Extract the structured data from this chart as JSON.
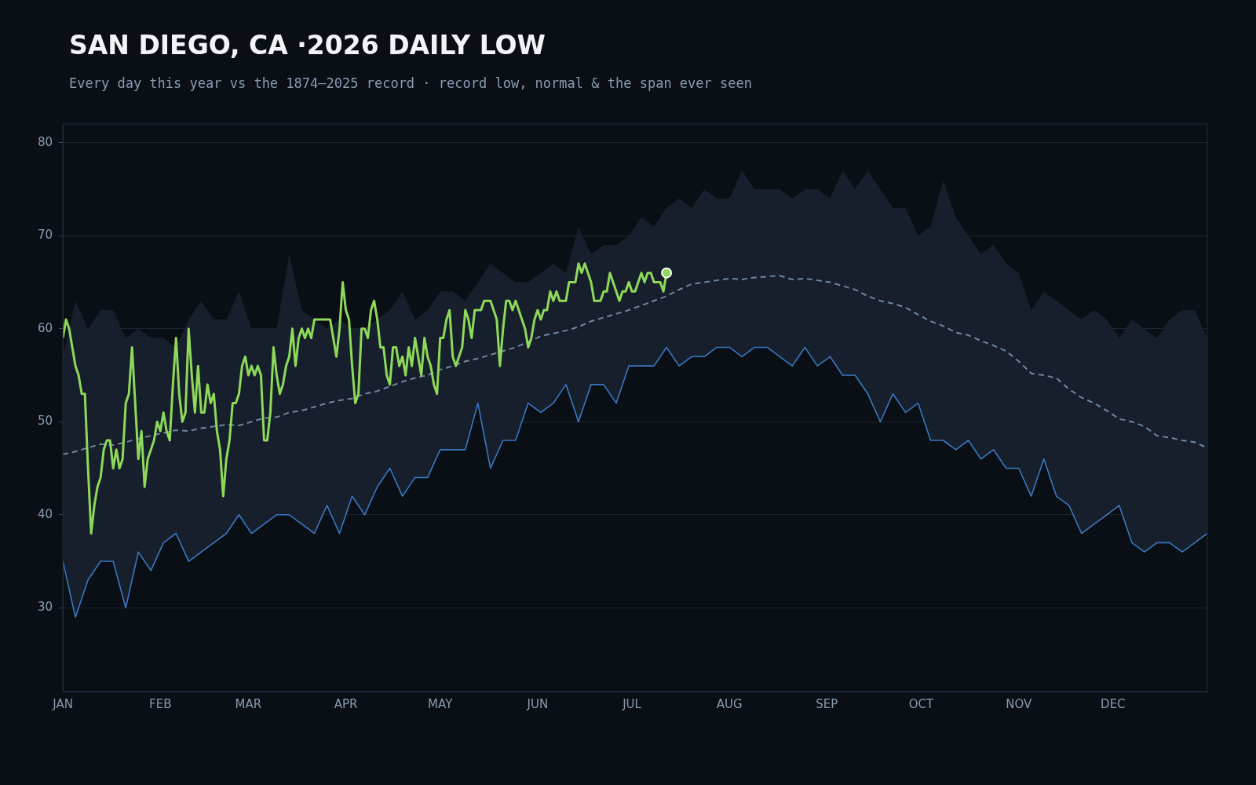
{
  "chart_data": {
    "type": "line",
    "title": "SAN DIEGO, CA ·2026 DAILY LOW",
    "subtitle": "Every day this year vs the 1874–2025 record · record low, normal & the span ever seen",
    "xlim": [
      "2026-01-01",
      "2026-12-31"
    ],
    "xticks": [
      {
        "value": "2026-01-01",
        "label": "JAN"
      },
      {
        "value": "2026-02-01",
        "label": "FEB"
      },
      {
        "value": "2026-03-01",
        "label": "MAR"
      },
      {
        "value": "2026-04-01",
        "label": "APR"
      },
      {
        "value": "2026-05-01",
        "label": "MAY"
      },
      {
        "value": "2026-06-01",
        "label": "JUN"
      },
      {
        "value": "2026-07-01",
        "label": "JUL"
      },
      {
        "value": "2026-08-01",
        "label": "AUG"
      },
      {
        "value": "2026-09-01",
        "label": "SEP"
      },
      {
        "value": "2026-10-01",
        "label": "OCT"
      },
      {
        "value": "2026-11-01",
        "label": "NOV"
      },
      {
        "value": "2026-12-01",
        "label": "DEC"
      }
    ],
    "ylim": [
      21,
      82
    ],
    "yticks": [
      30,
      40,
      50,
      60,
      70,
      80
    ],
    "grid": "y",
    "legend": false,
    "x": [
      "2026-01-01",
      "2026-01-02",
      "2026-01-03",
      "2026-01-04",
      "2026-01-05",
      "2026-01-06",
      "2026-01-07",
      "2026-01-08",
      "2026-01-09",
      "2026-01-10",
      "2026-01-11",
      "2026-01-12",
      "2026-01-13",
      "2026-01-14",
      "2026-01-15",
      "2026-01-16",
      "2026-01-17",
      "2026-01-18",
      "2026-01-19",
      "2026-01-20",
      "2026-01-21",
      "2026-01-22",
      "2026-01-23",
      "2026-01-24",
      "2026-01-25",
      "2026-01-26",
      "2026-01-27",
      "2026-01-28",
      "2026-01-29",
      "2026-01-30",
      "2026-01-31",
      "2026-02-01",
      "2026-02-02",
      "2026-02-03",
      "2026-02-04",
      "2026-02-05",
      "2026-02-06",
      "2026-02-07",
      "2026-02-08",
      "2026-02-09",
      "2026-02-10",
      "2026-02-11",
      "2026-02-12",
      "2026-02-13",
      "2026-02-14",
      "2026-02-15",
      "2026-02-16",
      "2026-02-17",
      "2026-02-18",
      "2026-02-19",
      "2026-02-20",
      "2026-02-21",
      "2026-02-22",
      "2026-02-23",
      "2026-02-24",
      "2026-02-25",
      "2026-02-26",
      "2026-02-27",
      "2026-02-28",
      "2026-03-01",
      "2026-03-02",
      "2026-03-03",
      "2026-03-04",
      "2026-03-05",
      "2026-03-06",
      "2026-03-07",
      "2026-03-08",
      "2026-03-09",
      "2026-03-10",
      "2026-03-11",
      "2026-03-12",
      "2026-03-13",
      "2026-03-14",
      "2026-03-15",
      "2026-03-16",
      "2026-03-17",
      "2026-03-18",
      "2026-03-19",
      "2026-03-20",
      "2026-03-21",
      "2026-03-22",
      "2026-03-23",
      "2026-03-24",
      "2026-03-25",
      "2026-03-26",
      "2026-03-27",
      "2026-03-28",
      "2026-03-29",
      "2026-03-30",
      "2026-03-31",
      "2026-04-01",
      "2026-04-02",
      "2026-04-03",
      "2026-04-04",
      "2026-04-05",
      "2026-04-06",
      "2026-04-07",
      "2026-04-08",
      "2026-04-09",
      "2026-04-10",
      "2026-04-11",
      "2026-04-12",
      "2026-04-13",
      "2026-04-14",
      "2026-04-15",
      "2026-04-16",
      "2026-04-17",
      "2026-04-18",
      "2026-04-19",
      "2026-04-20",
      "2026-04-21",
      "2026-04-22",
      "2026-04-23",
      "2026-04-24",
      "2026-04-25",
      "2026-04-26",
      "2026-04-27",
      "2026-04-28",
      "2026-04-29",
      "2026-04-30",
      "2026-05-01",
      "2026-05-02",
      "2026-05-03",
      "2026-05-04",
      "2026-05-05",
      "2026-05-06",
      "2026-05-07",
      "2026-05-08",
      "2026-05-09",
      "2026-05-10",
      "2026-05-11",
      "2026-05-12",
      "2026-05-13",
      "2026-05-14",
      "2026-05-15",
      "2026-05-16",
      "2026-05-17",
      "2026-05-18",
      "2026-05-19",
      "2026-05-20",
      "2026-05-21",
      "2026-05-22",
      "2026-05-23",
      "2026-05-24",
      "2026-05-25",
      "2026-05-26",
      "2026-05-27",
      "2026-05-28",
      "2026-05-29",
      "2026-05-30",
      "2026-05-31",
      "2026-06-01",
      "2026-06-02",
      "2026-06-03",
      "2026-06-04",
      "2026-06-05",
      "2026-06-06",
      "2026-06-07",
      "2026-06-08",
      "2026-06-09",
      "2026-06-10",
      "2026-06-11",
      "2026-06-12",
      "2026-06-13",
      "2026-06-14",
      "2026-06-15",
      "2026-06-16",
      "2026-06-17",
      "2026-06-18",
      "2026-06-19",
      "2026-06-20",
      "2026-06-21",
      "2026-06-22",
      "2026-06-23",
      "2026-06-24",
      "2026-06-25",
      "2026-06-26",
      "2026-06-27",
      "2026-06-28",
      "2026-06-29",
      "2026-06-30",
      "2026-07-01",
      "2026-07-02",
      "2026-07-03",
      "2026-07-04",
      "2026-07-05",
      "2026-07-06",
      "2026-07-07",
      "2026-07-08",
      "2026-07-09",
      "2026-07-10",
      "2026-07-11",
      "2026-07-12"
    ],
    "series": [
      {
        "type": "line",
        "color": "#6f86a3",
        "line_style": "dashed",
        "x": [
          "2026-01-01",
          "2026-01-05",
          "2026-01-09",
          "2026-01-13",
          "2026-01-17",
          "2026-01-21",
          "2026-01-25",
          "2026-01-29",
          "2026-02-02",
          "2026-02-06",
          "2026-02-10",
          "2026-02-14",
          "2026-02-18",
          "2026-02-22",
          "2026-02-26",
          "2026-03-02",
          "2026-03-06",
          "2026-03-10",
          "2026-03-14",
          "2026-03-18",
          "2026-03-22",
          "2026-03-26",
          "2026-03-30",
          "2026-04-03",
          "2026-04-07",
          "2026-04-11",
          "2026-04-15",
          "2026-04-19",
          "2026-04-23",
          "2026-04-27",
          "2026-05-01",
          "2026-05-05",
          "2026-05-09",
          "2026-05-13",
          "2026-05-17",
          "2026-05-21",
          "2026-05-25",
          "2026-05-29",
          "2026-06-02",
          "2026-06-06",
          "2026-06-10",
          "2026-06-14",
          "2026-06-18",
          "2026-06-22",
          "2026-06-26",
          "2026-06-30",
          "2026-07-04",
          "2026-07-08",
          "2026-07-12",
          "2026-07-16",
          "2026-07-20",
          "2026-07-24",
          "2026-07-28",
          "2026-08-01",
          "2026-08-05",
          "2026-08-09",
          "2026-08-13",
          "2026-08-17",
          "2026-08-21",
          "2026-08-25",
          "2026-08-29",
          "2026-09-02",
          "2026-09-06",
          "2026-09-10",
          "2026-09-14",
          "2026-09-18",
          "2026-09-22",
          "2026-09-26",
          "2026-09-30",
          "2026-10-04",
          "2026-10-08",
          "2026-10-12",
          "2026-10-16",
          "2026-10-20",
          "2026-10-24",
          "2026-10-28",
          "2026-11-01",
          "2026-11-05",
          "2026-11-09",
          "2026-11-13",
          "2026-11-17",
          "2026-11-21",
          "2026-11-25",
          "2026-11-29",
          "2026-12-03",
          "2026-12-07",
          "2026-12-11",
          "2026-12-15",
          "2026-12-19",
          "2026-12-23",
          "2026-12-27",
          "2026-12-31"
        ],
        "values": [
          46.5,
          46.8,
          47.2,
          47.6,
          47.5,
          47.8,
          48.2,
          48.5,
          48.8,
          49.1,
          49.0,
          49.3,
          49.5,
          49.7,
          49.6,
          50.0,
          50.4,
          50.5,
          51.0,
          51.2,
          51.6,
          52.0,
          52.3,
          52.5,
          53.0,
          53.3,
          53.8,
          54.3,
          54.7,
          55.0,
          55.6,
          56.0,
          56.5,
          56.8,
          57.2,
          57.6,
          58.0,
          58.6,
          59.2,
          59.5,
          59.8,
          60.2,
          60.8,
          61.2,
          61.6,
          62.0,
          62.5,
          63.0,
          63.5,
          64.2,
          64.8,
          65.0,
          65.2,
          65.4,
          65.3,
          65.5,
          65.6,
          65.7,
          65.3,
          65.4,
          65.2,
          65.0,
          64.6,
          64.2,
          63.5,
          63.0,
          62.7,
          62.3,
          61.5,
          60.8,
          60.3,
          59.6,
          59.3,
          58.7,
          58.2,
          57.6,
          56.5,
          55.2,
          55.0,
          54.7,
          53.5,
          52.6,
          52.0,
          51.2,
          50.3,
          50.0,
          49.5,
          48.5,
          48.3,
          48.0,
          47.8,
          47.2
        ],
        "lower": [
          35,
          29,
          33,
          35,
          35,
          30,
          36,
          34,
          37,
          38,
          35,
          36,
          37,
          38,
          40,
          38,
          39,
          40,
          40,
          39,
          38,
          41,
          38,
          42,
          40,
          43,
          45,
          42,
          44,
          44,
          47,
          47,
          47,
          52,
          45,
          48,
          48,
          52,
          51,
          52,
          54,
          50,
          54,
          54,
          52,
          56,
          56,
          56,
          58,
          56,
          57,
          57,
          58,
          58,
          57,
          58,
          58,
          57,
          56,
          58,
          56,
          57,
          55,
          55,
          53,
          50,
          53,
          51,
          52,
          48,
          48,
          47,
          48,
          46,
          47,
          45,
          45,
          42,
          46,
          42,
          41,
          38,
          39,
          40,
          41,
          37,
          36,
          37,
          37,
          36,
          37,
          38
        ],
        "upper": [
          57,
          63,
          60,
          62,
          62,
          59,
          60,
          59,
          59,
          58,
          61,
          63,
          61,
          61,
          64,
          60,
          60,
          60,
          68,
          62,
          61,
          60,
          61,
          60,
          60,
          61,
          62,
          64,
          61,
          62,
          64,
          64,
          63,
          65,
          67,
          66,
          65,
          65,
          66,
          67,
          66,
          71,
          68,
          69,
          69,
          70,
          72,
          71,
          73,
          74,
          73,
          75,
          74,
          74,
          77,
          75,
          75,
          75,
          74,
          75,
          75,
          74,
          77,
          75,
          77,
          75,
          73,
          73,
          70,
          71,
          76,
          72,
          70,
          68,
          69,
          67,
          66,
          62,
          64,
          63,
          62,
          61,
          62,
          61,
          59,
          61,
          60,
          59,
          61,
          62,
          62,
          59
        ]
      },
      {
        "type": "line",
        "color": "#3a78c0",
        "x": [
          "2026-01-01",
          "2026-01-05",
          "2026-01-09",
          "2026-01-13",
          "2026-01-17",
          "2026-01-21",
          "2026-01-25",
          "2026-01-29",
          "2026-02-02",
          "2026-02-06",
          "2026-02-10",
          "2026-02-14",
          "2026-02-18",
          "2026-02-22",
          "2026-02-26",
          "2026-03-02",
          "2026-03-06",
          "2026-03-10",
          "2026-03-14",
          "2026-03-18",
          "2026-03-22",
          "2026-03-26",
          "2026-03-30",
          "2026-04-03",
          "2026-04-07",
          "2026-04-11",
          "2026-04-15",
          "2026-04-19",
          "2026-04-23",
          "2026-04-27",
          "2026-05-01",
          "2026-05-05",
          "2026-05-09",
          "2026-05-13",
          "2026-05-17",
          "2026-05-21",
          "2026-05-25",
          "2026-05-29",
          "2026-06-02",
          "2026-06-06",
          "2026-06-10",
          "2026-06-14",
          "2026-06-18",
          "2026-06-22",
          "2026-06-26",
          "2026-06-30",
          "2026-07-04",
          "2026-07-08",
          "2026-07-12",
          "2026-07-16",
          "2026-07-20",
          "2026-07-24",
          "2026-07-28",
          "2026-08-01",
          "2026-08-05",
          "2026-08-09",
          "2026-08-13",
          "2026-08-17",
          "2026-08-21",
          "2026-08-25",
          "2026-08-29",
          "2026-09-02",
          "2026-09-06",
          "2026-09-10",
          "2026-09-14",
          "2026-09-18",
          "2026-09-22",
          "2026-09-26",
          "2026-09-30",
          "2026-10-04",
          "2026-10-08",
          "2026-10-12",
          "2026-10-16",
          "2026-10-20",
          "2026-10-24",
          "2026-10-28",
          "2026-11-01",
          "2026-11-05",
          "2026-11-09",
          "2026-11-13",
          "2026-11-17",
          "2026-11-21",
          "2026-11-25",
          "2026-11-29",
          "2026-12-03",
          "2026-12-07",
          "2026-12-11",
          "2026-12-15",
          "2026-12-19",
          "2026-12-23",
          "2026-12-27",
          "2026-12-31"
        ],
        "values": [
          35,
          29,
          33,
          35,
          35,
          30,
          36,
          34,
          37,
          38,
          35,
          36,
          37,
          38,
          40,
          38,
          39,
          40,
          40,
          39,
          38,
          41,
          38,
          42,
          40,
          43,
          45,
          42,
          44,
          44,
          47,
          47,
          47,
          52,
          45,
          48,
          48,
          52,
          51,
          52,
          54,
          50,
          54,
          54,
          52,
          56,
          56,
          56,
          58,
          56,
          57,
          57,
          58,
          58,
          57,
          58,
          58,
          57,
          56,
          58,
          56,
          57,
          55,
          55,
          53,
          50,
          53,
          51,
          52,
          48,
          48,
          47,
          48,
          46,
          47,
          45,
          45,
          42,
          46,
          42,
          41,
          38,
          39,
          40,
          41,
          37,
          36,
          37,
          37,
          36,
          37,
          38
        ]
      },
      {
        "type": "line",
        "color": "#8ed85a",
        "values": [
          59,
          61,
          60,
          58,
          56,
          55,
          53,
          53,
          45,
          38,
          41,
          43,
          44,
          47,
          48,
          48,
          45,
          47,
          45,
          46,
          52,
          53,
          58,
          52,
          46,
          49,
          43,
          46,
          47,
          48,
          50,
          49,
          51,
          49,
          48,
          54,
          59,
          53,
          50,
          51,
          60,
          55,
          51,
          56,
          51,
          51,
          54,
          52,
          53,
          49,
          47,
          42,
          46,
          48,
          52,
          52,
          53,
          56,
          57,
          55,
          56,
          55,
          56,
          55,
          48,
          48,
          51,
          58,
          55,
          53,
          54,
          56,
          57,
          60,
          56,
          59,
          60,
          59,
          60,
          59,
          61,
          61,
          61,
          61,
          61,
          61,
          59,
          57,
          60,
          65,
          62,
          61,
          56,
          52,
          53,
          60,
          60,
          59,
          62,
          63,
          61,
          58,
          58,
          55,
          54,
          58,
          58,
          56,
          57,
          55,
          58,
          56,
          59,
          57,
          55,
          59,
          57,
          56,
          54,
          53,
          59,
          59,
          61,
          62,
          57,
          56,
          57,
          58,
          62,
          61,
          59,
          62,
          62,
          62,
          63,
          63,
          63,
          62,
          61,
          56,
          60,
          63,
          63,
          62,
          63,
          62,
          61,
          60,
          58,
          59,
          61,
          62,
          61,
          62,
          62,
          64,
          63,
          64,
          63,
          63,
          63,
          65,
          65,
          65,
          67,
          66,
          67,
          66,
          65,
          63,
          63,
          63,
          64,
          64,
          66,
          65,
          64,
          63,
          64,
          64,
          65,
          64,
          64,
          65,
          66,
          65,
          66,
          66,
          65,
          65,
          65,
          64,
          66
        ]
      }
    ]
  }
}
